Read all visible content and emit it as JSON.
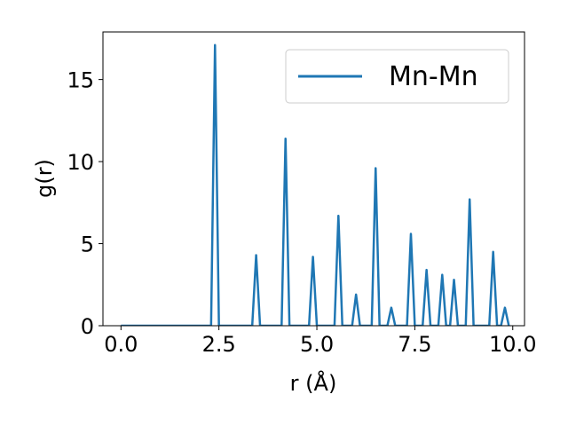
{
  "chart_data": {
    "type": "line",
    "xlabel": "r (Å)",
    "ylabel": "g(r)",
    "xlim": [
      -0.46,
      10.3
    ],
    "ylim": [
      0,
      17.9
    ],
    "xticks": [
      0.0,
      2.5,
      5.0,
      7.5,
      10.0
    ],
    "xtick_labels": [
      "0.0",
      "2.5",
      "5.0",
      "7.5",
      "10.0"
    ],
    "yticks": [
      0,
      5,
      10,
      15
    ],
    "ytick_labels": [
      "0",
      "5",
      "10",
      "15"
    ],
    "grid": false,
    "legend": {
      "position": "top-right",
      "entries": [
        "Mn-Mn"
      ]
    },
    "series": [
      {
        "name": "Mn-Mn",
        "color": "#1f77b4",
        "x": [
          0.0,
          2.3,
          2.4,
          2.5,
          3.35,
          3.45,
          3.55,
          4.1,
          4.2,
          4.3,
          4.8,
          4.9,
          5.0,
          5.45,
          5.55,
          5.65,
          5.9,
          6.0,
          6.1,
          6.4,
          6.5,
          6.6,
          6.8,
          6.9,
          7.0,
          7.3,
          7.4,
          7.5,
          7.7,
          7.8,
          7.9,
          8.1,
          8.2,
          8.3,
          8.4,
          8.5,
          8.6,
          8.8,
          8.9,
          9.0,
          9.4,
          9.5,
          9.6,
          9.7,
          9.8,
          9.9
        ],
        "y": [
          0,
          0,
          17.1,
          0,
          0,
          4.3,
          0,
          0,
          11.4,
          0,
          0,
          4.2,
          0,
          0,
          6.7,
          0,
          0,
          1.9,
          0,
          0,
          9.6,
          0,
          0,
          1.1,
          0,
          0,
          5.6,
          0,
          0,
          3.4,
          0,
          0,
          3.1,
          0,
          0,
          2.8,
          0,
          0,
          7.7,
          0,
          0,
          4.5,
          0,
          0,
          1.1,
          0
        ]
      }
    ]
  }
}
